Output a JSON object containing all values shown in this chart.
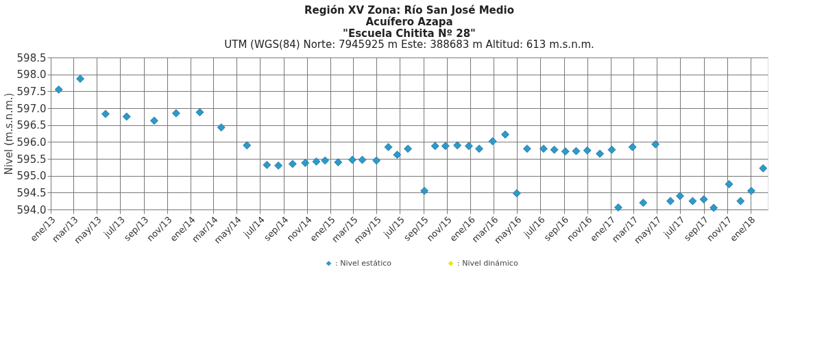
{
  "chart_data": {
    "type": "scatter",
    "title": "Región XV Zona: Río San José Medio\nAcuífero Azapa\n\"Escuela Chitita Nº 28\"",
    "subtitle": "UTM (WGS(84) Norte: 7945925 m Este: 388683 m  Altitud: 613 m.s.n.m.",
    "ylabel": "Nivel (m.s.n.m.)",
    "x": [
      "2013-01-22",
      "2013-03-19",
      "2013-05-24",
      "2013-07-18",
      "2013-09-28",
      "2013-11-24",
      "2014-01-25",
      "2014-03-22",
      "2014-05-28",
      "2014-07-19",
      "2014-08-18",
      "2014-09-24",
      "2014-10-27",
      "2014-11-25",
      "2014-12-18",
      "2015-01-21",
      "2015-02-27",
      "2015-03-25",
      "2015-05-01",
      "2015-06-01",
      "2015-06-24",
      "2015-07-22",
      "2015-09-03",
      "2015-10-01",
      "2015-10-28",
      "2015-11-28",
      "2015-12-28",
      "2016-01-24",
      "2016-02-28",
      "2016-04-01",
      "2016-05-01",
      "2016-05-28",
      "2016-07-10",
      "2016-08-07",
      "2016-09-05",
      "2016-10-03",
      "2016-11-01",
      "2016-12-04",
      "2017-01-04",
      "2017-01-21",
      "2017-02-27",
      "2017-03-27",
      "2017-04-28",
      "2017-06-06",
      "2017-07-01",
      "2017-08-03",
      "2017-09-01",
      "2017-09-27",
      "2017-11-06",
      "2017-12-06",
      "2018-01-03",
      "2018-02-03"
    ],
    "series": [
      {
        "name": ": Nivel estático",
        "color": "#2e9ac8",
        "values": [
          597.55,
          597.87,
          596.83,
          596.75,
          596.63,
          596.85,
          596.88,
          596.43,
          595.9,
          595.32,
          595.3,
          595.35,
          595.38,
          595.42,
          595.45,
          595.4,
          595.47,
          595.47,
          595.45,
          595.85,
          595.62,
          595.8,
          594.55,
          595.88,
          595.88,
          595.9,
          595.88,
          595.8,
          596.02,
          596.22,
          594.48,
          595.8,
          595.8,
          595.77,
          595.72,
          595.73,
          595.75,
          595.65,
          595.77,
          594.06,
          595.85,
          594.2,
          595.93,
          594.25,
          594.4,
          594.25,
          594.3,
          594.05,
          594.75,
          594.25,
          594.55,
          595.22
        ]
      },
      {
        "name": ": Nivel dinámico",
        "color": "#e8e800",
        "values": [
          null,
          null,
          null,
          null,
          null,
          null,
          null,
          null,
          null,
          null,
          null,
          null,
          null,
          null,
          null,
          null,
          null,
          null,
          null,
          null,
          null,
          null,
          null,
          null,
          null,
          null,
          null,
          null,
          null,
          null,
          null,
          null,
          null,
          null,
          null,
          null,
          null,
          null,
          null,
          null,
          null,
          null,
          null,
          null,
          null,
          null,
          null,
          null,
          null,
          null,
          null,
          null
        ]
      }
    ],
    "xlim": [
      "2013-01-01",
      "2018-02-15"
    ],
    "xticks": [
      {
        "value": "2013-01",
        "label": "ene/13"
      },
      {
        "value": "2013-03",
        "label": "mar/13"
      },
      {
        "value": "2013-05",
        "label": "may/13"
      },
      {
        "value": "2013-07",
        "label": "jul/13"
      },
      {
        "value": "2013-09",
        "label": "sep/13"
      },
      {
        "value": "2013-11",
        "label": "nov/13"
      },
      {
        "value": "2014-01",
        "label": "ene/14"
      },
      {
        "value": "2014-03",
        "label": "mar/14"
      },
      {
        "value": "2014-05",
        "label": "may/14"
      },
      {
        "value": "2014-07",
        "label": "jul/14"
      },
      {
        "value": "2014-09",
        "label": "sep/14"
      },
      {
        "value": "2014-11",
        "label": "nov/14"
      },
      {
        "value": "2015-01",
        "label": "ene/15"
      },
      {
        "value": "2015-03",
        "label": "mar/15"
      },
      {
        "value": "2015-05",
        "label": "may/15"
      },
      {
        "value": "2015-07",
        "label": "jul/15"
      },
      {
        "value": "2015-09",
        "label": "sep/15"
      },
      {
        "value": "2015-11",
        "label": "nov/15"
      },
      {
        "value": "2016-01",
        "label": "ene/16"
      },
      {
        "value": "2016-03",
        "label": "mar/16"
      },
      {
        "value": "2016-05",
        "label": "may/16"
      },
      {
        "value": "2016-07",
        "label": "jul/16"
      },
      {
        "value": "2016-09",
        "label": "sep/16"
      },
      {
        "value": "2016-11",
        "label": "nov/16"
      },
      {
        "value": "2017-01",
        "label": "ene/17"
      },
      {
        "value": "2017-03",
        "label": "mar/17"
      },
      {
        "value": "2017-05",
        "label": "may/17"
      },
      {
        "value": "2017-07",
        "label": "jul/17"
      },
      {
        "value": "2017-09",
        "label": "sep/17"
      },
      {
        "value": "2017-11",
        "label": "nov/17"
      },
      {
        "value": "2018-01",
        "label": "ene/18"
      }
    ],
    "ylim": [
      594.0,
      598.5
    ],
    "yticks": [
      {
        "value": 594,
        "label": "594.0"
      },
      {
        "value": 594.5,
        "label": "594.5"
      },
      {
        "value": 595,
        "label": "595.0"
      },
      {
        "value": 595.5,
        "label": "595.5"
      },
      {
        "value": 596,
        "label": "596.0"
      },
      {
        "value": 596.5,
        "label": "596.5"
      },
      {
        "value": 597,
        "label": "597.0"
      },
      {
        "value": 597.5,
        "label": "597.5"
      },
      {
        "value": 598,
        "label": "598.0"
      },
      {
        "value": 598.5,
        "label": "598.5"
      }
    ],
    "grid": true,
    "legend": "bottom",
    "marker": "diamond"
  }
}
